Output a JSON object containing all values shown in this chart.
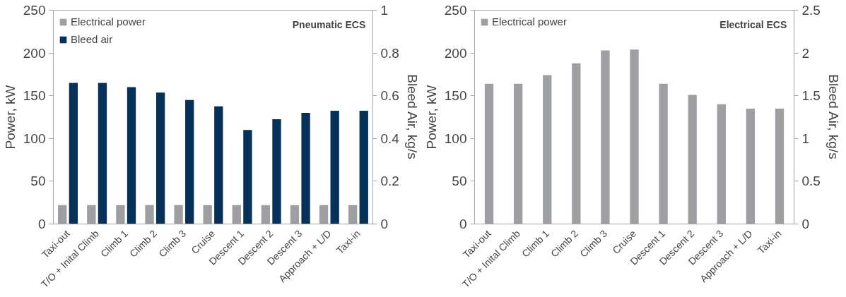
{
  "chart_data": [
    {
      "type": "bar",
      "title": "Pneumatic ECS",
      "ylabel": "Power, kW",
      "y2label": "Bleed Air, kg/s",
      "categories": [
        "Taxi-out",
        "T/O + Inital Climb",
        "Climb 1",
        "Climb 2",
        "Climb 3",
        "Cruise",
        "Descent 1",
        "Descent 2",
        "Descent 3",
        "Approach + L/D",
        "Taxi-in"
      ],
      "series": [
        {
          "name": "Electrical power",
          "color": "#9d9fa2",
          "values": [
            22,
            22,
            22,
            22,
            22,
            22,
            22,
            22,
            22,
            22,
            22
          ]
        },
        {
          "name": "Bleed air",
          "color": "#06325a",
          "axis": "y2",
          "values": [
            0.66,
            0.66,
            0.64,
            0.615,
            0.58,
            0.55,
            0.44,
            0.49,
            0.52,
            0.53,
            0.53
          ]
        }
      ],
      "ylim": [
        0,
        250
      ],
      "yticks": [
        0,
        50,
        100,
        150,
        200,
        250
      ],
      "y2lim": [
        0,
        1
      ],
      "y2ticks": [
        0,
        0.2,
        0.4,
        0.6,
        0.8,
        1
      ],
      "grid": false,
      "legend": "top left"
    },
    {
      "type": "bar",
      "title": "Electrical ECS",
      "ylabel": "Power, kW",
      "y2label": "Bleed Air, kg/s",
      "categories": [
        "Taxi-out",
        "T/O + Inital Climb",
        "Climb 1",
        "Climb 2",
        "Climb 3",
        "Cruise",
        "Descent 1",
        "Descent 2",
        "Descent 3",
        "Approach + L/D",
        "Taxi-in"
      ],
      "series": [
        {
          "name": "Electrical power",
          "color": "#9d9fa2",
          "values": [
            164,
            164,
            174,
            188,
            203,
            204,
            164,
            151,
            140,
            135,
            135
          ]
        }
      ],
      "ylim": [
        0,
        250
      ],
      "yticks": [
        0,
        50,
        100,
        150,
        200,
        250
      ],
      "y2lim": [
        0,
        2.5
      ],
      "y2ticks": [
        0,
        0.5,
        1,
        1.5,
        2,
        2.5
      ],
      "grid": false,
      "legend": "top left"
    }
  ]
}
